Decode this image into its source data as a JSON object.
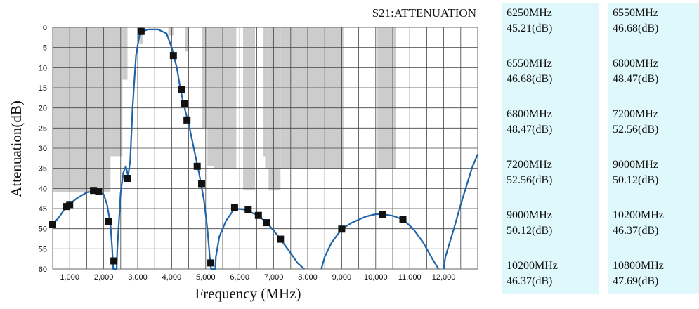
{
  "chart_data": {
    "type": "line",
    "title": "S21:ATTENUATION",
    "xlabel": "Frequency (MHz)",
    "ylabel": "Attenuation(dB)",
    "xlim": [
      500,
      13000
    ],
    "ylim": [
      0,
      60
    ],
    "y_inverted": true,
    "x_ticks": [
      1000,
      2000,
      3000,
      4000,
      5000,
      6000,
      7000,
      8000,
      9000,
      10000,
      11000,
      12000
    ],
    "x_tick_labels": [
      "1,000",
      "2,000",
      "3,000",
      "4,000",
      "5,000",
      "6,000",
      "7,000",
      "8,000",
      "9,000",
      "10,000",
      "11,000",
      "12,000"
    ],
    "y_ticks": [
      0,
      5,
      10,
      15,
      20,
      25,
      30,
      35,
      40,
      45,
      50,
      55,
      60
    ],
    "grid": true,
    "line_color": "#1f64a8",
    "marker_color": "#111111",
    "mask_color": "#cccccc",
    "series": [
      {
        "points": [
          [
            500,
            49
          ],
          [
            700,
            47
          ],
          [
            900,
            44.5
          ],
          [
            1200,
            42.5
          ],
          [
            1500,
            41
          ],
          [
            1800,
            40.5
          ],
          [
            2000,
            41.5
          ],
          [
            2100,
            44
          ],
          [
            2200,
            49
          ],
          [
            2250,
            55
          ],
          [
            2280,
            60
          ],
          [
            2380,
            60
          ],
          [
            2400,
            55
          ],
          [
            2450,
            48
          ],
          [
            2500,
            41
          ],
          [
            2580,
            36
          ],
          [
            2650,
            34.5
          ],
          [
            2720,
            37
          ],
          [
            2780,
            33
          ],
          [
            2850,
            20
          ],
          [
            2950,
            7
          ],
          [
            3050,
            2
          ],
          [
            3150,
            1
          ],
          [
            3300,
            0.5
          ],
          [
            3600,
            0.5
          ],
          [
            3850,
            1.5
          ],
          [
            4000,
            5
          ],
          [
            4150,
            10
          ],
          [
            4250,
            15
          ],
          [
            4350,
            19
          ],
          [
            4500,
            24
          ],
          [
            4650,
            30
          ],
          [
            4800,
            36
          ],
          [
            4950,
            43
          ],
          [
            5050,
            50
          ],
          [
            5120,
            57
          ],
          [
            5160,
            60
          ],
          [
            5280,
            60
          ],
          [
            5300,
            57
          ],
          [
            5400,
            52
          ],
          [
            5600,
            48
          ],
          [
            5850,
            45
          ],
          [
            6100,
            45.2
          ],
          [
            6250,
            45.6
          ],
          [
            6550,
            46.8
          ],
          [
            6800,
            48.5
          ],
          [
            7000,
            50.5
          ],
          [
            7200,
            52.6
          ],
          [
            7450,
            55.5
          ],
          [
            7700,
            58.5
          ],
          [
            7900,
            60
          ]
        ]
      },
      {
        "points": [
          [
            8400,
            60
          ],
          [
            8500,
            57
          ],
          [
            8700,
            53.5
          ],
          [
            9000,
            50.1
          ],
          [
            9300,
            48.5
          ],
          [
            9700,
            47
          ],
          [
            10000,
            46.4
          ],
          [
            10200,
            46.4
          ],
          [
            10500,
            46.8
          ],
          [
            10800,
            47.7
          ],
          [
            11100,
            50
          ],
          [
            11400,
            53.5
          ],
          [
            11700,
            58
          ],
          [
            11850,
            60
          ]
        ]
      },
      {
        "points": [
          [
            12000,
            60
          ],
          [
            12050,
            57
          ],
          [
            12300,
            50
          ],
          [
            12500,
            44
          ],
          [
            12700,
            38.5
          ],
          [
            12850,
            34.5
          ],
          [
            13000,
            31.5
          ]
        ]
      }
    ],
    "markers": [
      [
        500,
        49
      ],
      [
        900,
        44.5
      ],
      [
        1000,
        44
      ],
      [
        1700,
        40.5
      ],
      [
        1850,
        40.8
      ],
      [
        2150,
        48.2
      ],
      [
        2300,
        58
      ],
      [
        2700,
        37.5
      ],
      [
        3100,
        1
      ],
      [
        4050,
        7
      ],
      [
        4300,
        15.5
      ],
      [
        4380,
        19
      ],
      [
        4450,
        23
      ],
      [
        4750,
        34.5
      ],
      [
        4880,
        38.8
      ],
      [
        5150,
        58.5
      ],
      [
        5850,
        44.8
      ],
      [
        6250,
        45.2
      ],
      [
        6550,
        46.7
      ],
      [
        6800,
        48.5
      ],
      [
        7200,
        52.6
      ],
      [
        9000,
        50.1
      ],
      [
        10200,
        46.4
      ],
      [
        10800,
        47.7
      ]
    ],
    "mask_columns": [
      [
        500,
        2200,
        0,
        41
      ],
      [
        2200,
        2550,
        0,
        32
      ],
      [
        2550,
        2700,
        0,
        13
      ],
      [
        3050,
        3150,
        0,
        4
      ],
      [
        3900,
        4050,
        0,
        2
      ],
      [
        4400,
        4500,
        0,
        6
      ],
      [
        4900,
        5050,
        0,
        25
      ],
      [
        5050,
        5250,
        0,
        34.5
      ],
      [
        5250,
        5900,
        0,
        35
      ],
      [
        6100,
        6450,
        0,
        40.5
      ],
      [
        6700,
        6750,
        0,
        32
      ],
      [
        6750,
        6850,
        0,
        35
      ],
      [
        6850,
        7200,
        0,
        40.5
      ],
      [
        7200,
        9050,
        0,
        35
      ],
      [
        10050,
        10600,
        0,
        35
      ]
    ]
  },
  "readouts": {
    "left": [
      {
        "freq": "6250MHz",
        "att": "45.21(dB)"
      },
      {
        "freq": "6550MHz",
        "att": "46.68(dB)"
      },
      {
        "freq": "6800MHz",
        "att": "48.47(dB)"
      },
      {
        "freq": "7200MHz",
        "att": "52.56(dB)"
      },
      {
        "freq": "9000MHz",
        "att": "50.12(dB)"
      },
      {
        "freq": "10200MHz",
        "att": "46.37(dB)"
      }
    ],
    "right": [
      {
        "freq": "6550MHz",
        "att": "46.68(dB)"
      },
      {
        "freq": "6800MHz",
        "att": "48.47(dB)"
      },
      {
        "freq": "7200MHz",
        "att": "52.56(dB)"
      },
      {
        "freq": "9000MHz",
        "att": "50.12(dB)"
      },
      {
        "freq": "10200MHz",
        "att": "46.37(dB)"
      },
      {
        "freq": "10800MHz",
        "att": "47.69(dB)"
      }
    ]
  }
}
